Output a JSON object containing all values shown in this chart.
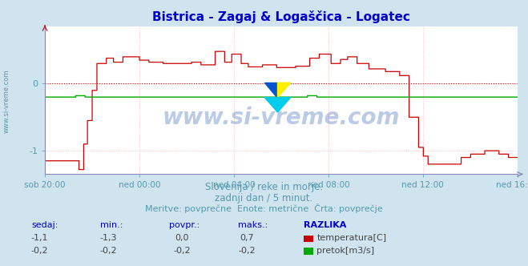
{
  "title": "Bistrica - Zagaj & Logaščica - Logatec",
  "title_color": "#0000cc",
  "bg_color": "#d0e4f0",
  "plot_bg_color": "#ffffff",
  "grid_color": "#ffb0b0",
  "xlabel_color": "#5599aa",
  "ylabel_color": "#5599aa",
  "watermark": "www.si-vreme.com",
  "subtitle1": "Slovenija / reke in morje.",
  "subtitle2": "zadnji dan / 5 minut.",
  "subtitle3": "Meritve: povprečne  Enote: metrične  Črta: povprečje",
  "subtitle_color": "#5599aa",
  "xticklabels": [
    "sob 20:00",
    "ned 00:00",
    "ned 04:00",
    "ned 08:00",
    "ned 12:00",
    "ned 16:00"
  ],
  "xtick_positions": [
    0.0,
    0.2,
    0.4,
    0.6,
    0.8,
    1.0
  ],
  "yticks": [
    -1,
    0
  ],
  "ylim": [
    -1.35,
    0.85
  ],
  "xlim": [
    0,
    1
  ],
  "temp_color": "#cc0000",
  "flow_color": "#00aa00",
  "zero_line_color": "#cc0000",
  "axis_color": "#8888bb",
  "table_headers": [
    "sedaj:",
    "min.:",
    "povpr.:",
    "maks.:",
    "RAZLIKA"
  ],
  "table_header_color": "#0000cc",
  "table_row1": [
    "-1,1",
    "-1,3",
    "0,0",
    "0,7",
    "temperatura[C]"
  ],
  "table_row2": [
    "-0,2",
    "-0,2",
    "-0,2",
    "-0,2",
    "pretok[m3/s]"
  ],
  "temp_legend_color": "#cc0000",
  "flow_legend_color": "#00aa00"
}
